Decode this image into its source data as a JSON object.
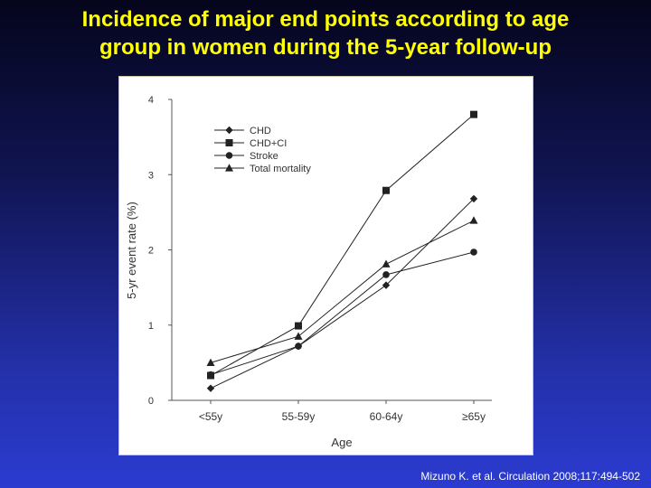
{
  "slide": {
    "title_line1": "Incidence of major end points according to age",
    "title_line2": "group in women during the 5-year follow-up",
    "citation": "Mizuno K. et al. Circulation 2008;117:494-502",
    "title_color": "#ffff00",
    "background_colors": [
      "#05051c",
      "#2b3bd0"
    ]
  },
  "chart_data": {
    "type": "line",
    "categories": [
      "<55y",
      "55-59y",
      "60-64y",
      "≥65y"
    ],
    "xlabel": "Age",
    "ylabel": "5-yr event rate (%)",
    "ylim": [
      0,
      4
    ],
    "yticks": [
      "0",
      "1",
      "2",
      "3",
      "4"
    ],
    "grid": false,
    "legend_position": "top-left",
    "series": [
      {
        "name": "CHD",
        "marker": "diamond",
        "values": [
          0.16,
          0.72,
          1.53,
          2.68
        ]
      },
      {
        "name": "CHD+CI",
        "marker": "square",
        "values": [
          0.33,
          0.99,
          2.79,
          3.8
        ]
      },
      {
        "name": "Stroke",
        "marker": "circle",
        "values": [
          0.34,
          0.72,
          1.67,
          1.97
        ]
      },
      {
        "name": "Total mortality",
        "marker": "triangle",
        "values": [
          0.5,
          0.85,
          1.81,
          2.39
        ]
      }
    ]
  }
}
